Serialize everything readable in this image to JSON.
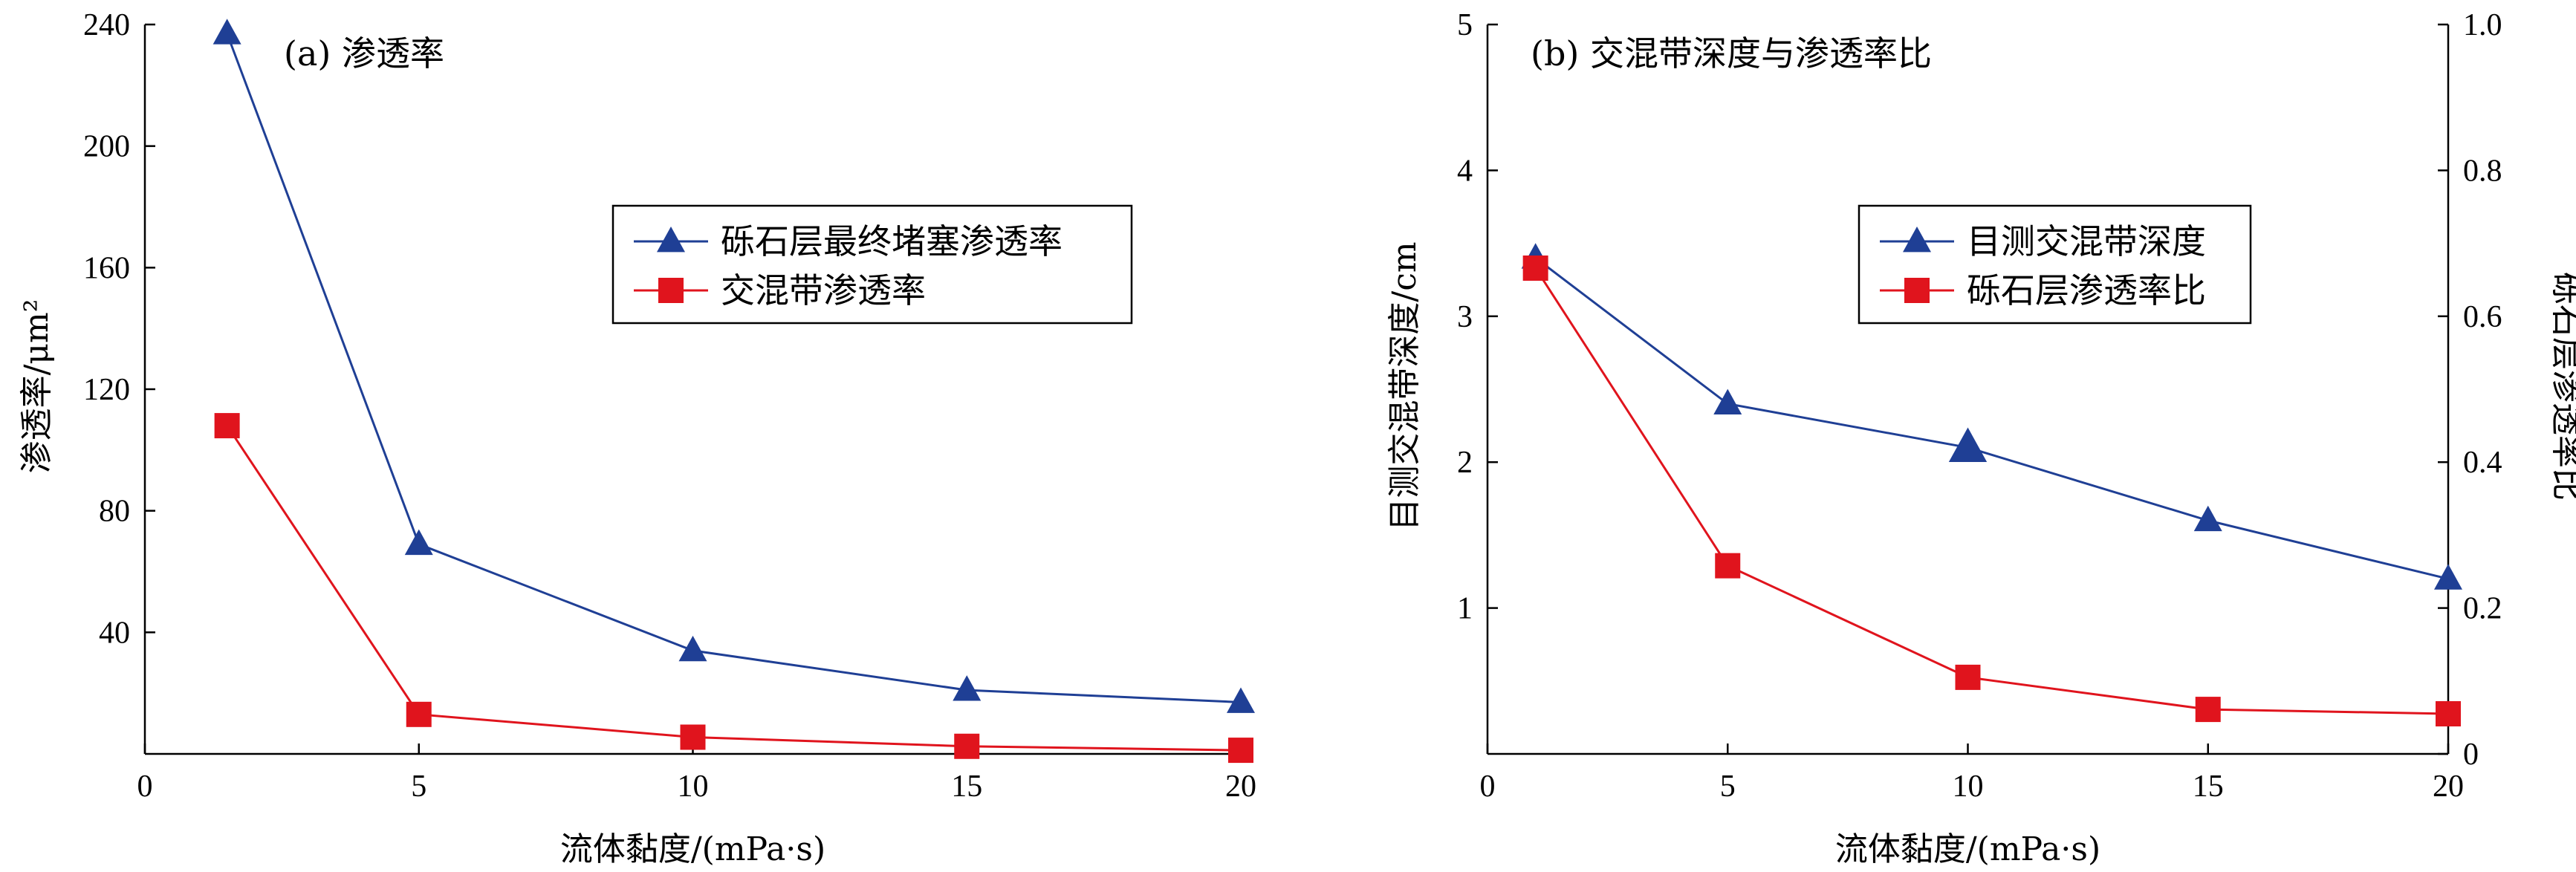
{
  "chart_data": [
    {
      "type": "line",
      "title": "(a) 渗透率",
      "xlabel": "流体黏度/(mPa·s)",
      "ylabel": "渗透率/μm²",
      "xlim": [
        0,
        20
      ],
      "ylim": [
        0,
        240
      ],
      "xticks": [
        "0",
        "5",
        "10",
        "15",
        "20"
      ],
      "yticks": [
        "40",
        "80",
        "120",
        "160",
        "200",
        "240"
      ],
      "legend_position": "center-right",
      "series": [
        {
          "name": "砾石层最终堵塞渗透率",
          "color": "#1f3f95",
          "marker": "triangle",
          "x": [
            1.5,
            5,
            10,
            15,
            20
          ],
          "y": [
            237,
            69,
            34,
            21,
            17
          ]
        },
        {
          "name": "交混带渗透率",
          "color": "#e0141d",
          "marker": "square",
          "x": [
            1.5,
            5,
            10,
            15,
            20
          ],
          "y": [
            108,
            13,
            5.5,
            2.5,
            1.2
          ]
        }
      ]
    },
    {
      "type": "line",
      "title": "(b) 交混带深度与渗透率比",
      "xlabel": "流体黏度/(mPa·s)",
      "ylabel": "目测交混带深度/cm",
      "ylabel_right": "砾石层渗透率比",
      "xlim": [
        0,
        20
      ],
      "ylim": [
        0,
        5
      ],
      "ylim_right": [
        0,
        1.0
      ],
      "xticks": [
        "0",
        "5",
        "10",
        "15",
        "20"
      ],
      "yticks": [
        "1",
        "2",
        "3",
        "4",
        "5"
      ],
      "yticks_right": [
        "0",
        "0.2",
        "0.4",
        "0.6",
        "0.8",
        "1.0"
      ],
      "legend_position": "center-right",
      "series": [
        {
          "name": "目测交混带深度",
          "color": "#1f3f95",
          "marker": "triangle",
          "axis": "left",
          "x": [
            1.0,
            5,
            10,
            15,
            20
          ],
          "y": [
            3.4,
            2.4,
            2.1,
            1.6,
            1.2
          ]
        },
        {
          "name": "砾石层渗透率比",
          "color": "#e0141d",
          "marker": "square",
          "axis": "right",
          "x": [
            1.0,
            5,
            10,
            15,
            20
          ],
          "y": [
            0.666,
            0.258,
            0.105,
            0.061,
            0.055
          ]
        }
      ]
    }
  ]
}
